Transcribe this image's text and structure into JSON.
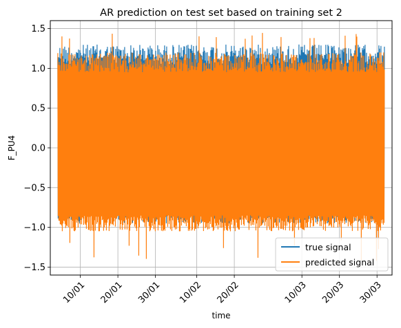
{
  "chart_data": {
    "type": "line",
    "title": "AR prediction on test set based on training set 2",
    "xlabel": "time",
    "ylabel": "F_PU4",
    "ylim": [
      -1.6,
      1.6
    ],
    "xlim": [
      "2017-01-02",
      "2017-04-03"
    ],
    "yticks": [
      -1.5,
      -1.0,
      -0.5,
      0.0,
      0.5,
      1.0,
      1.5
    ],
    "ytick_labels": [
      "−1.5",
      "−1.0",
      "−0.5",
      "0.0",
      "0.5",
      "1.0",
      "1.5"
    ],
    "xticks": [
      "2017-01-10",
      "2017-01-20",
      "2017-01-30",
      "2017-02-10",
      "2017-02-20",
      "2017-03-10",
      "2017-03-20",
      "2017-03-30"
    ],
    "xtick_labels": [
      "10/01",
      "20/01",
      "30/01",
      "10/02",
      "20/02",
      "10/03",
      "20/03",
      "30/03"
    ],
    "grid": true,
    "legend_position": "lower-right",
    "x_start": "2017-01-04",
    "x_end": "2017-04-01",
    "series": [
      {
        "name": "true signal",
        "color": "#1f77b4",
        "description": "oscillating signal mostly between about -0.95 and 1.3",
        "envelope": {
          "upper": 1.3,
          "lower": -0.95
        }
      },
      {
        "name": "predicted signal",
        "color": "#ff7f0e",
        "description": "prediction closely overlaying true signal, envelope about -1.45 to 1.45",
        "envelope": {
          "upper": 1.2,
          "lower": -1.05
        },
        "extremes": {
          "max": 1.45,
          "min": -1.45
        }
      }
    ]
  }
}
